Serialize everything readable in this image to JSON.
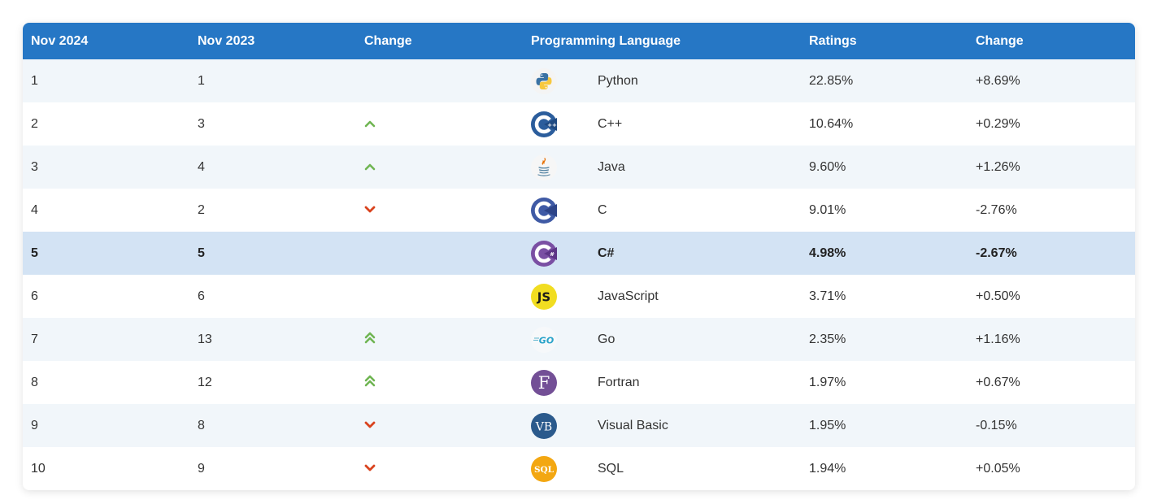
{
  "header": {
    "col1": "Nov 2024",
    "col2": "Nov 2023",
    "col3": "Change",
    "col4": "Programming Language",
    "col5": "Ratings",
    "col6": "Change"
  },
  "rows": [
    {
      "rank_now": "1",
      "rank_prev": "1",
      "trend": "none",
      "language": "Python",
      "logo": "python-icon",
      "rating": "22.85%",
      "change": "+8.69%"
    },
    {
      "rank_now": "2",
      "rank_prev": "3",
      "trend": "up",
      "language": "C++",
      "logo": "cpp-icon",
      "rating": "10.64%",
      "change": "+0.29%"
    },
    {
      "rank_now": "3",
      "rank_prev": "4",
      "trend": "up",
      "language": "Java",
      "logo": "java-icon",
      "rating": "9.60%",
      "change": "+1.26%"
    },
    {
      "rank_now": "4",
      "rank_prev": "2",
      "trend": "down",
      "language": "C",
      "logo": "c-icon",
      "rating": "9.01%",
      "change": "-2.76%"
    },
    {
      "rank_now": "5",
      "rank_prev": "5",
      "trend": "none",
      "language": "C#",
      "logo": "csharp-icon",
      "rating": "4.98%",
      "change": "-2.67%",
      "highlight": true
    },
    {
      "rank_now": "6",
      "rank_prev": "6",
      "trend": "none",
      "language": "JavaScript",
      "logo": "javascript-icon",
      "rating": "3.71%",
      "change": "+0.50%"
    },
    {
      "rank_now": "7",
      "rank_prev": "13",
      "trend": "double-up",
      "language": "Go",
      "logo": "go-icon",
      "rating": "2.35%",
      "change": "+1.16%"
    },
    {
      "rank_now": "8",
      "rank_prev": "12",
      "trend": "double-up",
      "language": "Fortran",
      "logo": "fortran-icon",
      "rating": "1.97%",
      "change": "+0.67%"
    },
    {
      "rank_now": "9",
      "rank_prev": "8",
      "trend": "down",
      "language": "Visual Basic",
      "logo": "visual-basic-icon",
      "rating": "1.95%",
      "change": "-0.15%"
    },
    {
      "rank_now": "10",
      "rank_prev": "9",
      "trend": "down",
      "language": "SQL",
      "logo": "sql-icon",
      "rating": "1.94%",
      "change": "+0.05%"
    }
  ],
  "logo_text": {
    "javascript-icon": "JS",
    "fortran-icon": "F",
    "visual-basic-icon": "VB",
    "sql-icon": "SQL",
    "go-icon": "GO"
  },
  "colors": {
    "header_bg": "#2677c5",
    "up_arrow": "#6fb552",
    "down_arrow": "#d9431e",
    "highlight_row": "#d3e3f4"
  }
}
